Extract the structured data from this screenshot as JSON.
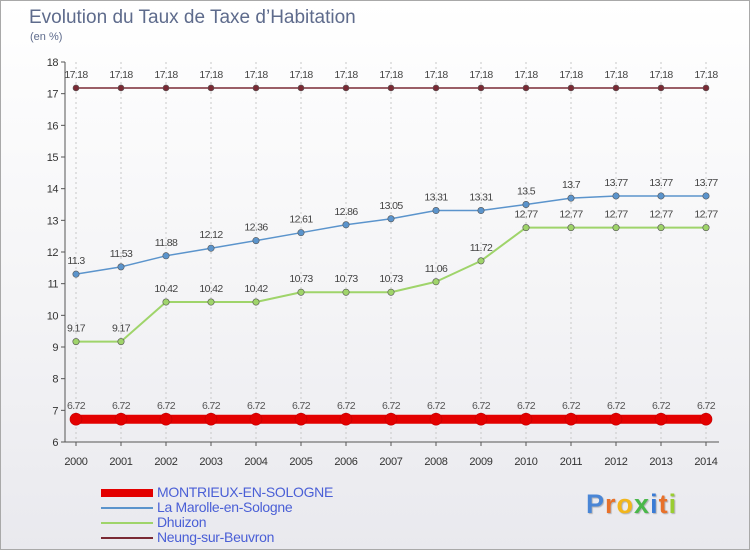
{
  "header": {
    "title": "Evolution du Taux de Taxe d’Habitation",
    "unit": "(en %)"
  },
  "chart_data": {
    "type": "line",
    "title": "Evolution du Taux de Taxe d’Habitation",
    "ylabel": "(en %)",
    "xlabel": "",
    "categories": [
      "2000",
      "2001",
      "2002",
      "2003",
      "2004",
      "2005",
      "2006",
      "2007",
      "2008",
      "2009",
      "2010",
      "2011",
      "2012",
      "2013",
      "2014"
    ],
    "ylim": [
      6,
      18
    ],
    "yticks": [
      6,
      7,
      8,
      9,
      10,
      11,
      12,
      13,
      14,
      15,
      16,
      17,
      18
    ],
    "grid": "vertical-dashed",
    "legend_position": "bottom-left",
    "series": [
      {
        "name": "MONTRIEUX-EN-SOLOGNE",
        "color": "#e30000",
        "values": [
          6.72,
          6.72,
          6.72,
          6.72,
          6.72,
          6.72,
          6.72,
          6.72,
          6.72,
          6.72,
          6.72,
          6.72,
          6.72,
          6.72,
          6.72
        ],
        "labels": [
          "6.72",
          "6.72",
          "6.72",
          "6.72",
          "6.72",
          "6.72",
          "6.72",
          "6.72",
          "6.72",
          "6.72",
          "6.72",
          "6.72",
          "6.72",
          "6.72",
          "6.72"
        ]
      },
      {
        "name": "La Marolle-en-Sologne",
        "color": "#5b94cc",
        "values": [
          11.3,
          11.53,
          11.88,
          12.12,
          12.36,
          12.61,
          12.86,
          13.05,
          13.31,
          13.31,
          13.5,
          13.7,
          13.77,
          13.77,
          13.77
        ],
        "labels": [
          "11.3",
          "11.53",
          "11.88",
          "12.12",
          "12.36",
          "12.61",
          "12.86",
          "13.05",
          "13.31",
          "13.31",
          "13.5",
          "13.7",
          "13.77",
          "13.77",
          "13.77"
        ]
      },
      {
        "name": "Dhuizon",
        "color": "#9fd46a",
        "values": [
          9.17,
          9.17,
          10.42,
          10.42,
          10.42,
          10.73,
          10.73,
          10.73,
          11.06,
          11.72,
          12.77,
          12.77,
          12.77,
          12.77,
          12.77
        ],
        "labels": [
          "9.17",
          "9.17",
          "10.42",
          "10.42",
          "10.42",
          "10.73",
          "10.73",
          "10.73",
          "11.06",
          "11.72",
          "12.77",
          "12.77",
          "12.77",
          "12.77",
          "12.77"
        ]
      },
      {
        "name": "Neung-sur-Beuvron",
        "color": "#7a2a34",
        "values": [
          17.18,
          17.18,
          17.18,
          17.18,
          17.18,
          17.18,
          17.18,
          17.18,
          17.18,
          17.18,
          17.18,
          17.18,
          17.18,
          17.18,
          17.18
        ],
        "labels": [
          "17.18",
          "17.18",
          "17.18",
          "17.18",
          "17.18",
          "17.18",
          "17.18",
          "17.18",
          "17.18",
          "17.18",
          "17.18",
          "17.18",
          "17.18",
          "17.18",
          "17.18"
        ]
      }
    ]
  },
  "legend": {
    "items": [
      {
        "label": "MONTRIEUX-EN-SOLOGNE",
        "color": "#e30000"
      },
      {
        "label": "La Marolle-en-Sologne",
        "color": "#5b94cc"
      },
      {
        "label": "Dhuizon",
        "color": "#9fd46a"
      },
      {
        "label": "Neung-sur-Beuvron",
        "color": "#7a2a34"
      }
    ]
  },
  "logo": {
    "letters": [
      "P",
      "r",
      "o",
      "x",
      "i",
      "t",
      "i"
    ],
    "colors": [
      "#4a86d6",
      "#e8712a",
      "#f2b61c",
      "#4ab84a",
      "#3a7bd5",
      "#e8712a",
      "#9acd32"
    ]
  }
}
